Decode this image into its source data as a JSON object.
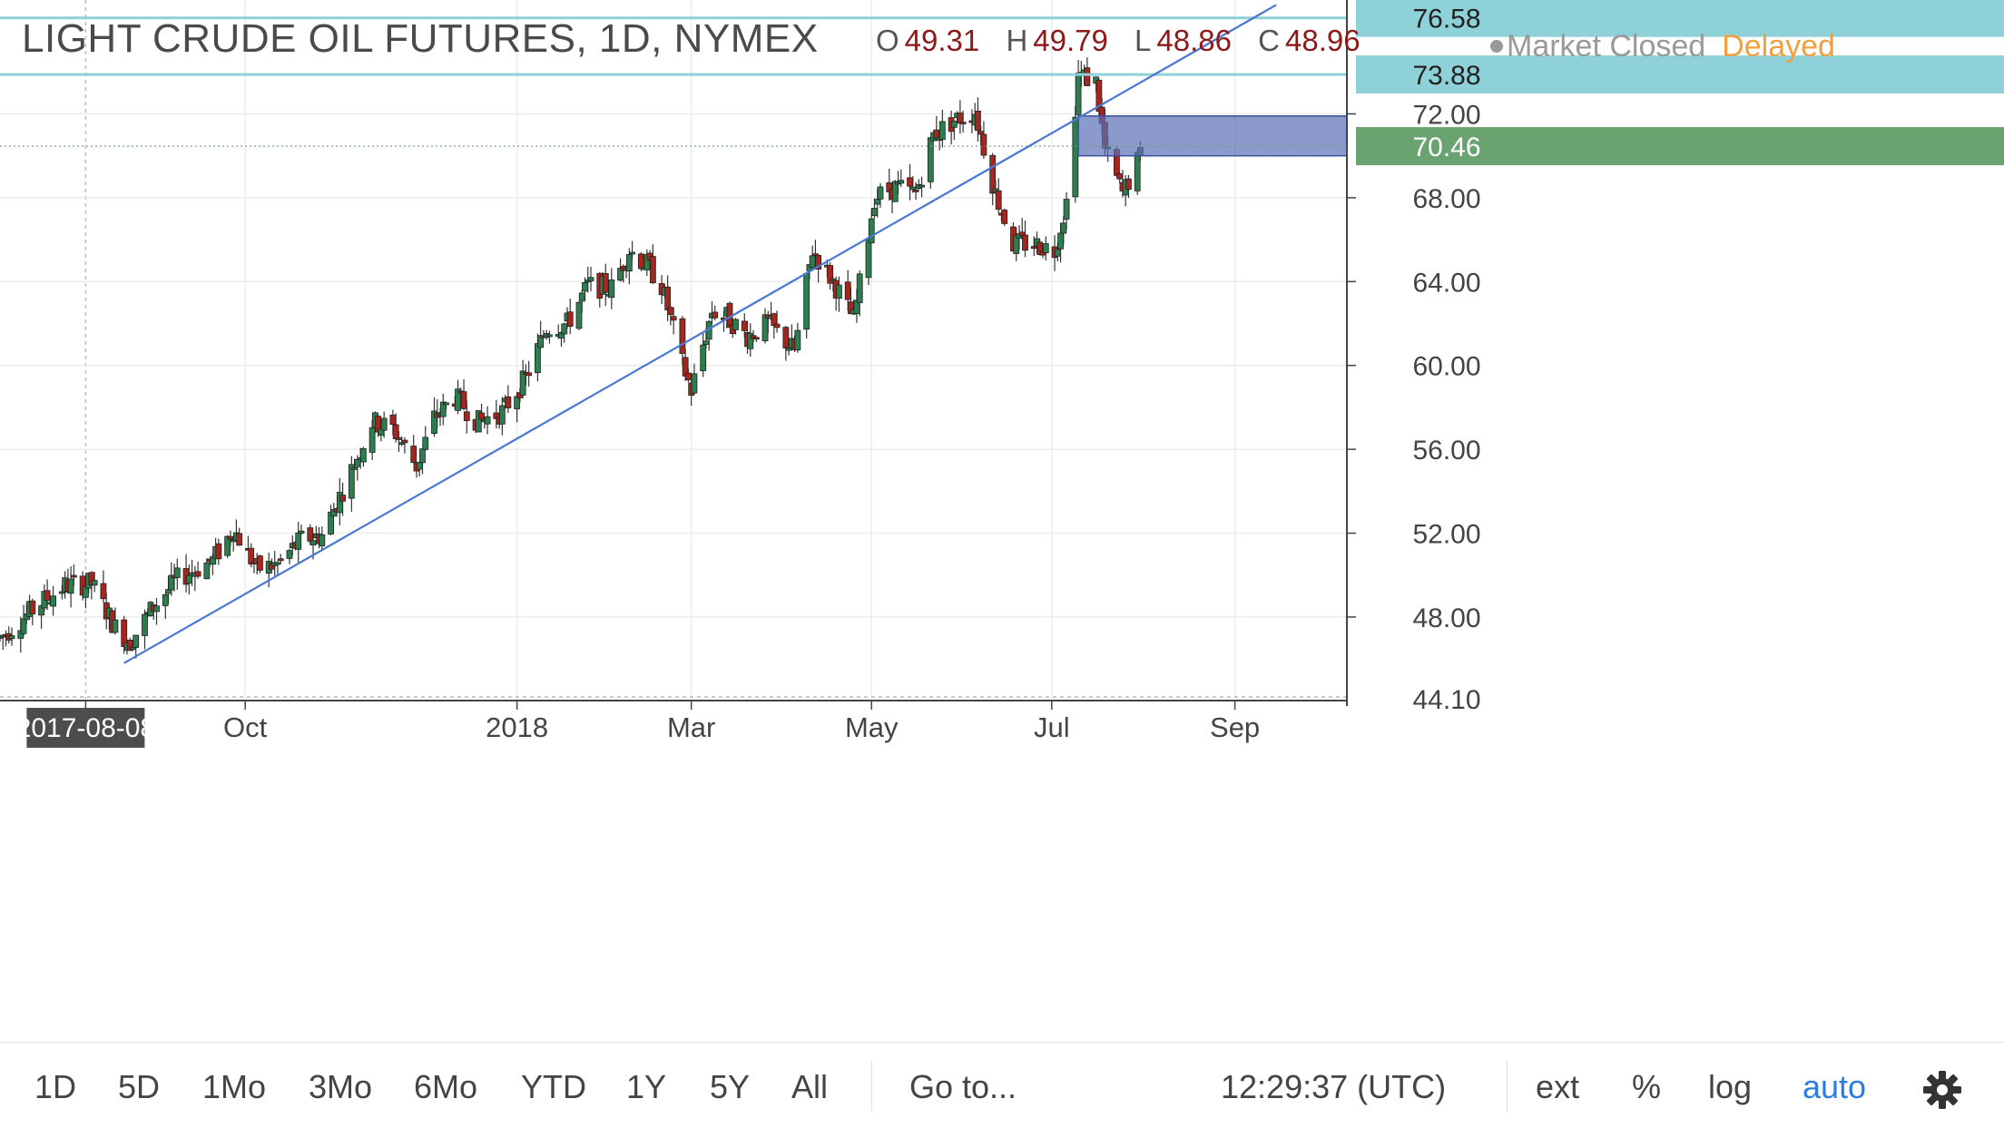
{
  "header": {
    "title": "LIGHT CRUDE OIL FUTURES, 1D, NYMEX",
    "ohlc": [
      {
        "label": "O",
        "value": "49.31"
      },
      {
        "label": "H",
        "value": "49.79"
      },
      {
        "label": "L",
        "value": "48.86"
      },
      {
        "label": "C",
        "value": "48.96"
      }
    ],
    "status": "Market Closed",
    "delay": "Delayed"
  },
  "colors": {
    "up": "#2e7d4f",
    "down": "#a3271f",
    "trendline": "#4a78d4",
    "level_line": "#8fd1d8",
    "zone_fill": "#5a6fb3",
    "current_price_tag": "#6aa36f",
    "level_tag": "#8fd1d8"
  },
  "chart_data": {
    "type": "candlestick",
    "symbol": "LIGHT CRUDE OIL FUTURES",
    "interval": "1D",
    "exchange": "NYMEX",
    "x_tick_labels": [
      "2017-08-08",
      "Oct",
      "2018",
      "Mar",
      "May",
      "Jul",
      "Sep"
    ],
    "y_tick_labels": [
      "48.00",
      "52.00",
      "56.00",
      "60.00",
      "64.00",
      "68.00",
      "72.00"
    ],
    "ylim": [
      44.1,
      77.0
    ],
    "price_tags": {
      "top": "76.58",
      "resistance": "73.88",
      "current": "70.46",
      "bottom": "44.10"
    },
    "horizontal_levels": [
      76.58,
      73.88
    ],
    "trendline": {
      "start": {
        "date": "2017-08-21",
        "price": 45.8
      },
      "end": {
        "date": "2018-09-15",
        "price": 77.2
      }
    },
    "zone": {
      "start": "2018-07-10",
      "top": 71.9,
      "bottom": 70.0
    },
    "path_points": [
      [
        "2017-07-10",
        47.0
      ],
      [
        "2017-07-24",
        48.7
      ],
      [
        "2017-08-01",
        49.5
      ],
      [
        "2017-08-10",
        49.6
      ],
      [
        "2017-08-18",
        47.5
      ],
      [
        "2017-08-23",
        46.8
      ],
      [
        "2017-08-31",
        48.5
      ],
      [
        "2017-09-08",
        49.8
      ],
      [
        "2017-09-20",
        50.7
      ],
      [
        "2017-09-27",
        52.2
      ],
      [
        "2017-10-05",
        50.3
      ],
      [
        "2017-10-12",
        50.5
      ],
      [
        "2017-10-20",
        51.7
      ],
      [
        "2017-10-27",
        51.9
      ],
      [
        "2017-11-06",
        55.0
      ],
      [
        "2017-11-13",
        57.3
      ],
      [
        "2017-11-20",
        57.0
      ],
      [
        "2017-11-28",
        55.2
      ],
      [
        "2017-12-04",
        57.5
      ],
      [
        "2017-12-11",
        58.5
      ],
      [
        "2017-12-19",
        57.3
      ],
      [
        "2017-12-27",
        57.8
      ],
      [
        "2018-01-04",
        59.4
      ],
      [
        "2018-01-11",
        61.8
      ],
      [
        "2018-01-18",
        62.0
      ],
      [
        "2018-01-25",
        63.8
      ],
      [
        "2018-02-02",
        63.7
      ],
      [
        "2018-02-08",
        65.5
      ],
      [
        "2018-02-14",
        64.8
      ],
      [
        "2018-02-19",
        63.8
      ],
      [
        "2018-02-26",
        60.1
      ],
      [
        "2018-03-01",
        58.8
      ],
      [
        "2018-03-08",
        62.6
      ],
      [
        "2018-03-13",
        62.3
      ],
      [
        "2018-03-20",
        61.4
      ],
      [
        "2018-03-27",
        62.0
      ],
      [
        "2018-04-05",
        60.7
      ],
      [
        "2018-04-11",
        65.5
      ],
      [
        "2018-04-18",
        64.0
      ],
      [
        "2018-04-25",
        62.2
      ],
      [
        "2018-05-02",
        68.0
      ],
      [
        "2018-05-09",
        68.5
      ],
      [
        "2018-05-16",
        68.2
      ],
      [
        "2018-05-22",
        71.0
      ],
      [
        "2018-05-29",
        71.7
      ],
      [
        "2018-06-05",
        72.1
      ],
      [
        "2018-06-12",
        68.2
      ],
      [
        "2018-06-18",
        65.8
      ],
      [
        "2018-06-25",
        65.8
      ],
      [
        "2018-07-02",
        65.5
      ],
      [
        "2018-07-06",
        67.8
      ],
      [
        "2018-07-10",
        73.9
      ],
      [
        "2018-07-16",
        73.5
      ],
      [
        "2018-07-19",
        70.3
      ],
      [
        "2018-07-25",
        68.2
      ],
      [
        "2018-07-31",
        70.0
      ]
    ]
  },
  "toolbar": {
    "ranges": [
      "1D",
      "5D",
      "1Mo",
      "3Mo",
      "6Mo",
      "YTD",
      "1Y",
      "5Y",
      "All"
    ],
    "goto": "Go to...",
    "clock": "12:29:37 (UTC)",
    "ext": "ext",
    "percent": "%",
    "log": "log",
    "auto": "auto",
    "settings_icon": "gear-icon"
  }
}
